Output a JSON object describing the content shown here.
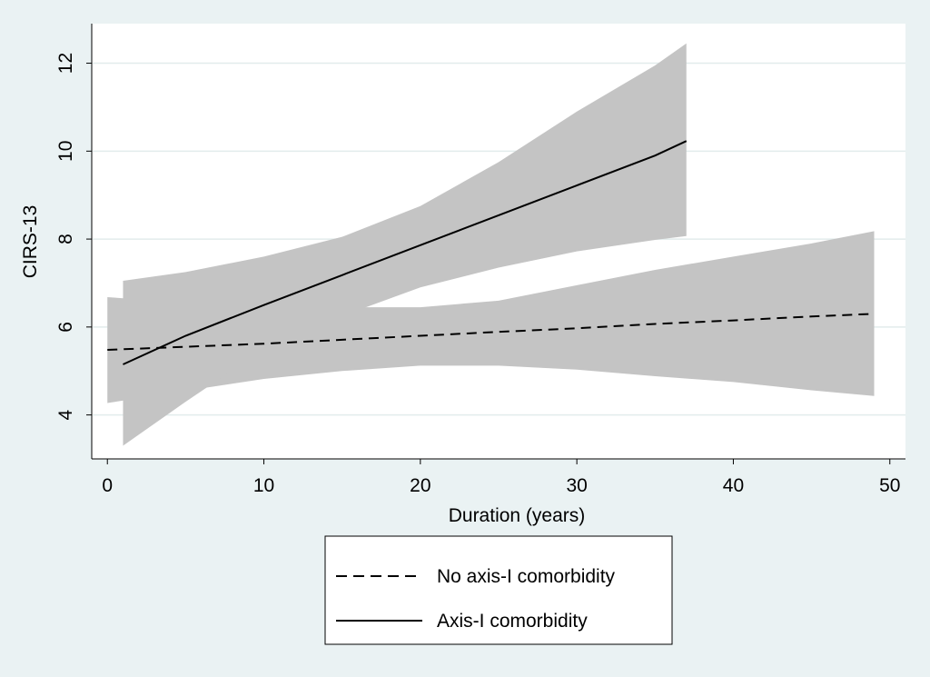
{
  "chart_data": {
    "type": "line",
    "title": "",
    "xlabel": "Duration (years)",
    "ylabel": "CIRS-13",
    "xlim": [
      -1,
      51
    ],
    "ylim": [
      3,
      12.9
    ],
    "x_ticks": [
      "0",
      "10",
      "20",
      "30",
      "40",
      "50"
    ],
    "y_ticks": [
      "4",
      "6",
      "8",
      "10",
      "12"
    ],
    "grid": true,
    "legend_position": "bottom",
    "series": [
      {
        "name": "No axis-I comorbidity",
        "style": "dashed",
        "color": "#000000",
        "band_color": "#c4c4c4",
        "x": [
          0,
          5,
          10,
          15,
          20,
          25,
          30,
          35,
          40,
          45,
          49
        ],
        "y": [
          5.48,
          5.55,
          5.62,
          5.71,
          5.8,
          5.89,
          5.97,
          6.07,
          6.15,
          6.24,
          6.3
        ],
        "ci_low": [
          4.27,
          4.55,
          4.82,
          5.0,
          5.12,
          5.12,
          5.03,
          4.88,
          4.75,
          4.56,
          4.43
        ],
        "ci_high": [
          6.68,
          6.55,
          6.5,
          6.45,
          6.45,
          6.6,
          6.95,
          7.3,
          7.6,
          7.9,
          8.18
        ]
      },
      {
        "name": "Axis-I comorbidity",
        "style": "solid",
        "color": "#000000",
        "band_color": "#c4c4c4",
        "x": [
          1,
          5,
          10,
          15,
          20,
          25,
          30,
          35,
          37
        ],
        "y": [
          5.15,
          5.8,
          6.5,
          7.18,
          7.86,
          8.54,
          9.22,
          9.9,
          10.23
        ],
        "ci_low": [
          3.3,
          4.3,
          5.5,
          6.25,
          6.9,
          7.35,
          7.72,
          7.98,
          8.07
        ],
        "ci_high": [
          7.05,
          7.25,
          7.6,
          8.05,
          8.75,
          9.75,
          10.9,
          11.95,
          12.45
        ]
      }
    ]
  }
}
